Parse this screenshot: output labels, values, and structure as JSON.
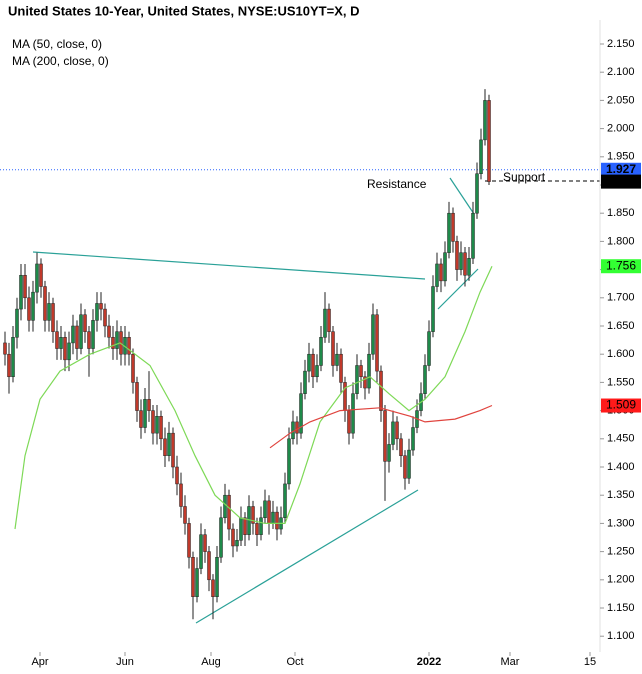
{
  "chart_data": {
    "type": "candlestick",
    "title": "United States 10-Year, United States, NYSE:US10YT=X, D",
    "annotations": [
      "Resistance",
      "Support"
    ],
    "up_color": "#1e8a4a",
    "down_color": "#c0392b",
    "open": [
      1.62,
      1.6,
      1.56,
      1.63,
      1.68,
      1.74,
      1.7,
      1.66,
      1.71,
      1.76,
      1.72,
      1.66,
      1.69,
      1.64,
      1.61,
      1.63,
      1.59,
      1.62,
      1.65,
      1.61,
      1.67,
      1.64,
      1.61,
      1.66,
      1.69,
      1.68,
      1.65,
      1.63,
      1.61,
      1.64,
      1.6,
      1.63,
      1.6,
      1.55,
      1.5,
      1.47,
      1.52,
      1.5,
      1.46,
      1.49,
      1.45,
      1.42,
      1.46,
      1.4,
      1.37,
      1.33,
      1.3,
      1.24,
      1.17,
      1.22,
      1.28,
      1.25,
      1.2,
      1.17,
      1.24,
      1.31,
      1.35,
      1.29,
      1.26,
      1.27,
      1.31,
      1.28,
      1.33,
      1.3,
      1.28,
      1.31,
      1.34,
      1.3,
      1.32,
      1.29,
      1.31,
      1.37,
      1.45,
      1.48,
      1.46,
      1.53,
      1.57,
      1.6,
      1.56,
      1.58,
      1.63,
      1.68,
      1.64,
      1.58,
      1.6,
      1.55,
      1.5,
      1.46,
      1.53,
      1.58,
      1.56,
      1.54,
      1.6,
      1.67,
      1.57,
      1.5,
      1.41,
      1.44,
      1.48,
      1.45,
      1.42,
      1.38,
      1.43,
      1.47,
      1.5,
      1.53,
      1.58,
      1.64,
      1.72,
      1.76,
      1.73,
      1.78,
      1.85,
      1.8,
      1.75,
      1.78,
      1.74,
      1.77,
      1.85,
      1.92,
      1.98,
      2.05
    ],
    "high": [
      1.64,
      1.62,
      1.65,
      1.7,
      1.76,
      1.76,
      1.72,
      1.73,
      1.78,
      1.77,
      1.73,
      1.71,
      1.7,
      1.66,
      1.65,
      1.64,
      1.64,
      1.67,
      1.66,
      1.69,
      1.68,
      1.65,
      1.68,
      1.71,
      1.71,
      1.69,
      1.67,
      1.65,
      1.66,
      1.65,
      1.65,
      1.64,
      1.61,
      1.56,
      1.52,
      1.54,
      1.57,
      1.51,
      1.51,
      1.5,
      1.47,
      1.48,
      1.47,
      1.42,
      1.39,
      1.35,
      1.31,
      1.25,
      1.24,
      1.3,
      1.29,
      1.26,
      1.21,
      1.26,
      1.33,
      1.37,
      1.36,
      1.3,
      1.29,
      1.33,
      1.32,
      1.35,
      1.34,
      1.31,
      1.33,
      1.36,
      1.35,
      1.34,
      1.33,
      1.33,
      1.39,
      1.47,
      1.5,
      1.49,
      1.55,
      1.59,
      1.62,
      1.61,
      1.6,
      1.65,
      1.71,
      1.69,
      1.65,
      1.62,
      1.61,
      1.56,
      1.51,
      1.55,
      1.6,
      1.59,
      1.57,
      1.62,
      1.69,
      1.68,
      1.58,
      1.51,
      1.46,
      1.5,
      1.49,
      1.46,
      1.43,
      1.45,
      1.49,
      1.52,
      1.55,
      1.6,
      1.66,
      1.74,
      1.78,
      1.77,
      1.8,
      1.87,
      1.86,
      1.81,
      1.8,
      1.79,
      1.79,
      1.87,
      1.94,
      2.0,
      2.07,
      2.06
    ],
    "low": [
      1.58,
      1.53,
      1.55,
      1.61,
      1.66,
      1.68,
      1.64,
      1.64,
      1.69,
      1.7,
      1.64,
      1.64,
      1.62,
      1.59,
      1.59,
      1.57,
      1.57,
      1.6,
      1.59,
      1.6,
      1.62,
      1.56,
      1.6,
      1.64,
      1.66,
      1.63,
      1.61,
      1.59,
      1.59,
      1.58,
      1.58,
      1.58,
      1.53,
      1.48,
      1.45,
      1.46,
      1.48,
      1.44,
      1.44,
      1.43,
      1.4,
      1.41,
      1.38,
      1.35,
      1.31,
      1.28,
      1.22,
      1.13,
      1.16,
      1.21,
      1.23,
      1.18,
      1.13,
      1.16,
      1.23,
      1.3,
      1.27,
      1.24,
      1.25,
      1.26,
      1.26,
      1.27,
      1.28,
      1.26,
      1.27,
      1.3,
      1.28,
      1.29,
      1.27,
      1.28,
      1.3,
      1.36,
      1.44,
      1.44,
      1.45,
      1.52,
      1.55,
      1.54,
      1.55,
      1.57,
      1.62,
      1.62,
      1.56,
      1.57,
      1.53,
      1.48,
      1.44,
      1.45,
      1.52,
      1.54,
      1.52,
      1.53,
      1.59,
      1.55,
      1.48,
      1.34,
      1.39,
      1.43,
      1.43,
      1.4,
      1.36,
      1.37,
      1.42,
      1.46,
      1.49,
      1.52,
      1.57,
      1.63,
      1.71,
      1.71,
      1.72,
      1.77,
      1.78,
      1.73,
      1.74,
      1.72,
      1.73,
      1.76,
      1.84,
      1.91,
      1.97,
      1.9
    ],
    "close": [
      1.6,
      1.56,
      1.63,
      1.68,
      1.74,
      1.7,
      1.66,
      1.71,
      1.76,
      1.72,
      1.66,
      1.69,
      1.64,
      1.61,
      1.63,
      1.59,
      1.62,
      1.65,
      1.61,
      1.67,
      1.64,
      1.61,
      1.66,
      1.69,
      1.68,
      1.65,
      1.63,
      1.61,
      1.64,
      1.6,
      1.63,
      1.6,
      1.55,
      1.5,
      1.47,
      1.52,
      1.5,
      1.46,
      1.49,
      1.45,
      1.42,
      1.46,
      1.4,
      1.37,
      1.33,
      1.3,
      1.24,
      1.17,
      1.22,
      1.28,
      1.25,
      1.2,
      1.17,
      1.24,
      1.31,
      1.35,
      1.29,
      1.26,
      1.27,
      1.31,
      1.28,
      1.33,
      1.3,
      1.28,
      1.31,
      1.34,
      1.3,
      1.32,
      1.29,
      1.31,
      1.37,
      1.45,
      1.48,
      1.46,
      1.53,
      1.57,
      1.6,
      1.56,
      1.58,
      1.63,
      1.68,
      1.64,
      1.58,
      1.6,
      1.55,
      1.5,
      1.46,
      1.53,
      1.58,
      1.56,
      1.54,
      1.6,
      1.67,
      1.57,
      1.5,
      1.41,
      1.44,
      1.48,
      1.45,
      1.42,
      1.38,
      1.43,
      1.47,
      1.5,
      1.53,
      1.58,
      1.64,
      1.72,
      1.76,
      1.73,
      1.78,
      1.85,
      1.8,
      1.75,
      1.78,
      1.74,
      1.77,
      1.85,
      1.92,
      1.98,
      2.05,
      1.906
    ],
    "series": [
      {
        "name": "MA (50, close, 0)",
        "color": "#7ed957",
        "x": [
          2.5,
          5,
          8.75,
          13.75,
          21.25,
          28.75,
          36.25,
          42.5,
          47.5,
          52.5,
          58.75,
          65,
          70,
          73.75,
          78.75,
          85,
          91.25,
          96,
          101,
          105,
          110,
          115,
          118.75,
          121.75
        ],
        "values": [
          1.29,
          1.42,
          1.52,
          1.57,
          1.6,
          1.62,
          1.58,
          1.5,
          1.42,
          1.35,
          1.31,
          1.3,
          1.3,
          1.37,
          1.48,
          1.54,
          1.56,
          1.53,
          1.5,
          1.52,
          1.56,
          1.64,
          1.71,
          1.756
        ]
      },
      {
        "name": "MA (200, close, 0)",
        "color": "#e0443e",
        "x": [
          66.25,
          71.25,
          76.25,
          83.75,
          93.75,
          101.25,
          105,
          112.5,
          118.75,
          121.75
        ],
        "values": [
          1.434,
          1.46,
          1.48,
          1.5,
          1.505,
          1.49,
          1.48,
          1.485,
          1.5,
          1.509
        ]
      }
    ],
    "previous_close": 1.927,
    "xlim": [
      -1.25,
      148.75
    ],
    "xticks": [
      {
        "value": 8.75,
        "label": "Apr"
      },
      {
        "value": 30,
        "label": "Jun"
      },
      {
        "value": 51.5,
        "label": "Aug"
      },
      {
        "value": 72.5,
        "label": "Oct"
      },
      {
        "value": 106,
        "label": "2022"
      },
      {
        "value": 126.25,
        "label": "Mar"
      },
      {
        "value": 146.25,
        "label": "15"
      }
    ],
    "ylim": [
      1.072,
      2.189
    ],
    "yticks": [
      {
        "value": 1.1,
        "label": "1.100"
      },
      {
        "value": 1.15,
        "label": "1.150"
      },
      {
        "value": 1.2,
        "label": "1.200"
      },
      {
        "value": 1.25,
        "label": "1.250"
      },
      {
        "value": 1.3,
        "label": "1.300"
      },
      {
        "value": 1.35,
        "label": "1.350"
      },
      {
        "value": 1.4,
        "label": "1.400"
      },
      {
        "value": 1.45,
        "label": "1.450"
      },
      {
        "value": 1.5,
        "label": "1.500"
      },
      {
        "value": 1.55,
        "label": "1.550"
      },
      {
        "value": 1.6,
        "label": "1.600"
      },
      {
        "value": 1.65,
        "label": "1.650"
      },
      {
        "value": 1.7,
        "label": "1.700"
      },
      {
        "value": 1.75,
        "label": "1.750"
      },
      {
        "value": 1.8,
        "label": "1.800"
      },
      {
        "value": 1.85,
        "label": "1.850"
      },
      {
        "value": 1.9,
        "label": "1.900"
      },
      {
        "value": 1.95,
        "label": "1.950"
      },
      {
        "value": 2.0,
        "label": "2.000"
      },
      {
        "value": 2.05,
        "label": "2.050"
      },
      {
        "value": 2.1,
        "label": "2.100"
      },
      {
        "value": 2.15,
        "label": "2.150"
      }
    ],
    "grid": false
  }
}
